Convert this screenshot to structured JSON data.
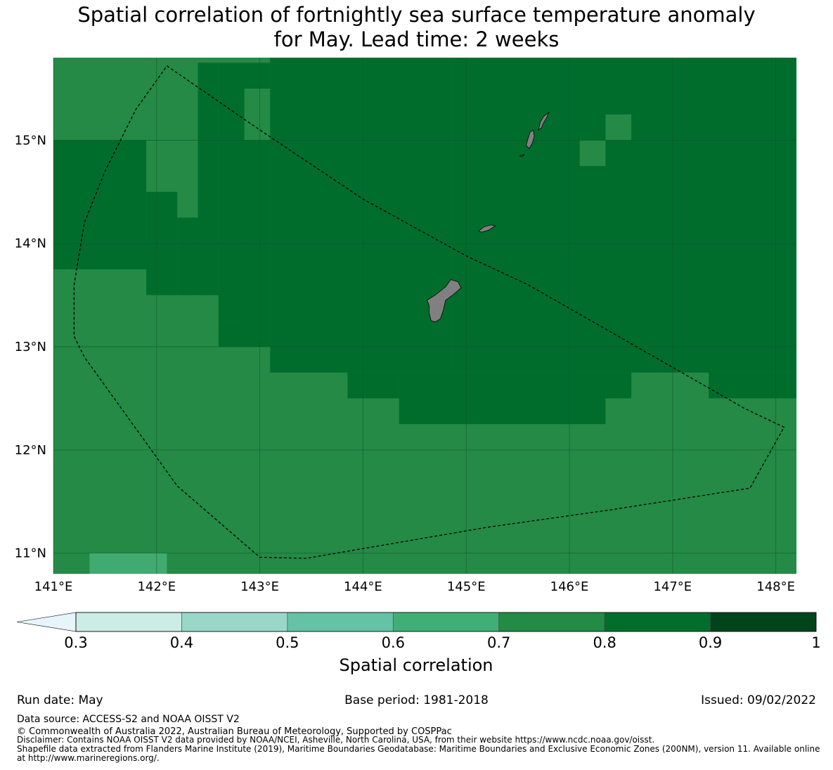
{
  "title": {
    "line1": "Spatial correlation of fortnightly sea surface temperature anomaly",
    "line2": "for May. Lead time: 2 weeks"
  },
  "map": {
    "lon_range": [
      141.0,
      148.2
    ],
    "lat_range": [
      10.8,
      15.8
    ],
    "cell_deg": 0.25,
    "x_ticks": [
      {
        "value": 141,
        "label": "141°E"
      },
      {
        "value": 142,
        "label": "142°E"
      },
      {
        "value": 143,
        "label": "143°E"
      },
      {
        "value": 144,
        "label": "144°E"
      },
      {
        "value": 145,
        "label": "145°E"
      },
      {
        "value": 146,
        "label": "146°E"
      },
      {
        "value": 147,
        "label": "147°E"
      },
      {
        "value": 148,
        "label": "148°E"
      }
    ],
    "y_ticks": [
      {
        "value": 15,
        "label": "15°N"
      },
      {
        "value": 14,
        "label": "14°N"
      },
      {
        "value": 13,
        "label": "13°N"
      },
      {
        "value": 12,
        "label": "12°N"
      },
      {
        "value": 11,
        "label": "11°N"
      }
    ],
    "colors": {
      "background_class": "#248a45",
      "high_class": "#016d2d",
      "low_class": "#40aa70",
      "land": "#808080",
      "grid": "#0f5028",
      "boundary": "#000000"
    },
    "cells": [
      {
        "lon": [
          141.0,
          143.1
        ],
        "lat": [
          15.0,
          15.8
        ],
        "class": "0.7-0.8"
      },
      {
        "lon": [
          141.0,
          141.9
        ],
        "lat": [
          13.75,
          15.0
        ],
        "class": "0.8-0.9"
      },
      {
        "lon": [
          141.9,
          142.2
        ],
        "lat": [
          14.5,
          15.0
        ],
        "class": "0.7-0.8"
      },
      {
        "lon": [
          141.9,
          142.2
        ],
        "lat": [
          13.5,
          14.5
        ],
        "class": "0.8-0.9"
      },
      {
        "lon": [
          142.2,
          142.4
        ],
        "lat": [
          14.25,
          15.0
        ],
        "class": "0.7-0.8"
      },
      {
        "lon": [
          142.2,
          142.4
        ],
        "lat": [
          13.5,
          14.25
        ],
        "class": "0.8-0.9"
      },
      {
        "lon": [
          141.6,
          141.9
        ],
        "lat": [
          13.75,
          14.0
        ],
        "class": "0.8-0.9"
      },
      {
        "lon": [
          142.4,
          142.6
        ],
        "lat": [
          13.5,
          15.75
        ],
        "class": "0.8-0.9"
      },
      {
        "lon": [
          142.6,
          142.85
        ],
        "lat": [
          13.25,
          15.75
        ],
        "class": "0.8-0.9"
      },
      {
        "lon": [
          142.85,
          143.1
        ],
        "lat": [
          13.0,
          15.0
        ],
        "class": "0.8-0.9"
      },
      {
        "lon": [
          142.85,
          143.1
        ],
        "lat": [
          15.5,
          15.75
        ],
        "class": "0.8-0.9"
      },
      {
        "lon": [
          142.6,
          142.85
        ],
        "lat": [
          13.0,
          13.25
        ],
        "class": "0.8-0.9"
      },
      {
        "lon": [
          143.1,
          144.85
        ],
        "lat": [
          12.75,
          15.8
        ],
        "class": "0.8-0.9"
      },
      {
        "lon": [
          143.85,
          144.35
        ],
        "lat": [
          12.5,
          12.75
        ],
        "class": "0.8-0.9"
      },
      {
        "lon": [
          144.35,
          146.35
        ],
        "lat": [
          12.25,
          12.75
        ],
        "class": "0.8-0.9"
      },
      {
        "lon": [
          144.85,
          148.2
        ],
        "lat": [
          12.75,
          15.8
        ],
        "class": "0.8-0.9"
      },
      {
        "lon": [
          146.35,
          146.6
        ],
        "lat": [
          12.5,
          12.75
        ],
        "class": "0.8-0.9"
      },
      {
        "lon": [
          147.35,
          148.2
        ],
        "lat": [
          12.5,
          12.75
        ],
        "class": "0.8-0.9"
      },
      {
        "lon": [
          146.1,
          146.35
        ],
        "lat": [
          14.75,
          15.0
        ],
        "class": "0.7-0.8"
      },
      {
        "lon": [
          146.35,
          146.6
        ],
        "lat": [
          15.0,
          15.25
        ],
        "class": "0.7-0.8"
      },
      {
        "lon": [
          141.35,
          142.1
        ],
        "lat": [
          10.8,
          11.0
        ],
        "class": "0.6-0.7"
      }
    ],
    "boundary_eez": [
      [
        142.1,
        15.72
      ],
      [
        143.0,
        15.1
      ],
      [
        144.0,
        14.43
      ],
      [
        145.0,
        13.88
      ],
      [
        145.6,
        13.6
      ],
      [
        146.3,
        13.2
      ],
      [
        147.0,
        12.8
      ],
      [
        147.7,
        12.4
      ],
      [
        148.08,
        12.22
      ],
      [
        147.9,
        11.9
      ],
      [
        147.75,
        11.63
      ],
      [
        146.4,
        11.42
      ],
      [
        145.2,
        11.25
      ],
      [
        143.45,
        10.95
      ],
      [
        143.0,
        10.96
      ],
      [
        142.2,
        11.65
      ],
      [
        141.3,
        12.9
      ],
      [
        141.2,
        13.1
      ],
      [
        141.2,
        13.6
      ],
      [
        141.3,
        14.2
      ],
      [
        141.5,
        14.7
      ],
      [
        141.8,
        15.3
      ],
      [
        142.1,
        15.72
      ]
    ],
    "islands": [
      {
        "name": "Guam",
        "outline": [
          [
            144.62,
            13.45
          ],
          [
            144.7,
            13.5
          ],
          [
            144.8,
            13.58
          ],
          [
            144.85,
            13.65
          ],
          [
            144.92,
            13.63
          ],
          [
            144.95,
            13.57
          ],
          [
            144.87,
            13.5
          ],
          [
            144.8,
            13.45
          ],
          [
            144.78,
            13.36
          ],
          [
            144.75,
            13.27
          ],
          [
            144.7,
            13.24
          ],
          [
            144.66,
            13.25
          ],
          [
            144.64,
            13.33
          ],
          [
            144.64,
            13.4
          ],
          [
            144.62,
            13.45
          ]
        ]
      },
      {
        "name": "Rota",
        "outline": [
          [
            145.12,
            14.12
          ],
          [
            145.17,
            14.16
          ],
          [
            145.24,
            14.18
          ],
          [
            145.28,
            14.17
          ],
          [
            145.22,
            14.13
          ],
          [
            145.15,
            14.11
          ],
          [
            145.12,
            14.12
          ]
        ]
      },
      {
        "name": "Tinian",
        "outline": [
          [
            145.58,
            14.95
          ],
          [
            145.6,
            15.02
          ],
          [
            145.62,
            15.08
          ],
          [
            145.65,
            15.1
          ],
          [
            145.66,
            15.04
          ],
          [
            145.64,
            14.97
          ],
          [
            145.61,
            14.92
          ],
          [
            145.58,
            14.95
          ]
        ]
      },
      {
        "name": "Aguijan",
        "outline": [
          [
            145.52,
            14.85
          ],
          [
            145.56,
            14.86
          ],
          [
            145.54,
            14.84
          ],
          [
            145.52,
            14.85
          ]
        ]
      },
      {
        "name": "Saipan",
        "outline": [
          [
            145.7,
            15.1
          ],
          [
            145.72,
            15.18
          ],
          [
            145.75,
            15.23
          ],
          [
            145.8,
            15.27
          ],
          [
            145.78,
            15.22
          ],
          [
            145.75,
            15.17
          ],
          [
            145.73,
            15.12
          ],
          [
            145.7,
            15.1
          ]
        ]
      }
    ]
  },
  "colorbar": {
    "title": "Spatial correlation",
    "bins": [
      {
        "from": 0.3,
        "to": 0.4,
        "color": "#ccece6"
      },
      {
        "from": 0.4,
        "to": 0.5,
        "color": "#99d8c9"
      },
      {
        "from": 0.5,
        "to": 0.6,
        "color": "#66c2a4"
      },
      {
        "from": 0.6,
        "to": 0.7,
        "color": "#41ae76"
      },
      {
        "from": 0.7,
        "to": 0.8,
        "color": "#238b45"
      },
      {
        "from": 0.8,
        "to": 0.9,
        "color": "#006d2c"
      },
      {
        "from": 0.9,
        "to": 1.0,
        "color": "#00441b"
      }
    ],
    "extend_low_color": "#e5f5f9",
    "tick_labels": [
      "0.3",
      "0.4",
      "0.5",
      "0.6",
      "0.7",
      "0.8",
      "0.9",
      "1"
    ]
  },
  "footer": {
    "run_date": "Run date: May",
    "base_period": "Base period: 1981-2018",
    "issued": "Issued: 09/02/2022",
    "data_source": "Data source: ACCESS-S2 and NOAA OISST V2",
    "copyright": "© Commonwealth of Australia 2022, Australian Bureau of Meteorology, Supported by COSPPac",
    "disclaimer": "Disclaimer: Contains NOAA OISST V2 data provided by NOAA/NCEI, Asheville, North Carolina, USA, from their website https://www.ncdc.noaa.gov/oisst.",
    "shapefile": "Shapefile data extracted from Flanders Marine Institute (2019), Maritime Boundaries Geodatabase: Maritime Boundaries and Exclusive Economic Zones (200NM), version 11. Available online at http://www.marineregions.org/."
  }
}
